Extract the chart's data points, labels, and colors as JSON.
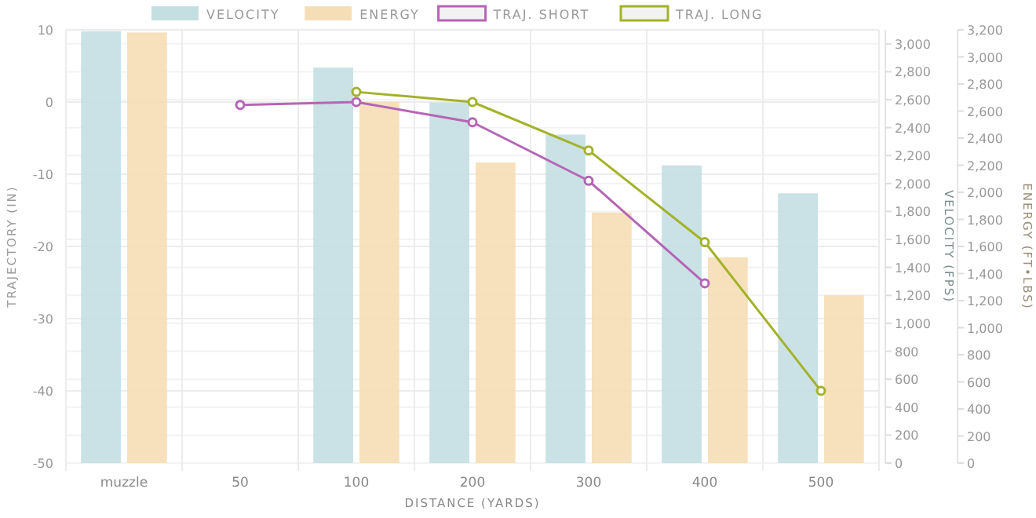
{
  "chart_data": {
    "type": "bar",
    "xlabel": "DISTANCE (YARDS)",
    "ylabel": "TRAJECTORY (IN)",
    "y2label": "VELOCITY (FPS)",
    "y3label": "ENERGY (FT•LBS)",
    "categories": [
      "muzzle",
      "50",
      "100",
      "200",
      "300",
      "400",
      "500"
    ],
    "series": [
      {
        "name": "VELOCITY",
        "axis": "y2",
        "color": "#c4dfe2",
        "values": [
          3090,
          null,
          2830,
          2580,
          2350,
          2130,
          1930
        ]
      },
      {
        "name": "ENERGY",
        "axis": "y3",
        "color": "#f5deb5",
        "values": [
          3180,
          null,
          2670,
          2220,
          1850,
          1520,
          1240
        ]
      },
      {
        "name": "TRAJ. SHORT",
        "type": "line",
        "axis": "y",
        "color": "#b565b5",
        "values": [
          null,
          -0.4,
          0,
          -2.8,
          -10.9,
          -25.1,
          null
        ]
      },
      {
        "name": "TRAJ. LONG",
        "type": "line",
        "axis": "y",
        "color": "#a3b22a",
        "values": [
          null,
          null,
          1.4,
          0,
          -6.7,
          -19.4,
          -40
        ]
      }
    ],
    "ylim": [
      -50,
      10
    ],
    "yticks": [
      -50,
      -40,
      -30,
      -20,
      -10,
      0,
      10
    ],
    "y2lim": [
      0,
      3100
    ],
    "y2ticks": [
      0,
      200,
      400,
      600,
      800,
      {
        "value": 1000,
        "label": "1,000"
      },
      {
        "value": 1200,
        "label": "1,200"
      },
      {
        "value": 1400,
        "label": "1,400"
      },
      {
        "value": 1600,
        "label": "1,600"
      },
      {
        "value": 1800,
        "label": "1,800"
      },
      {
        "value": 2000,
        "label": "2,000"
      },
      {
        "value": 2200,
        "label": "2,200"
      },
      {
        "value": 2400,
        "label": "2,400"
      },
      {
        "value": 2600,
        "label": "2,600"
      },
      {
        "value": 2800,
        "label": "2,800"
      },
      {
        "value": 3000,
        "label": "3,000"
      }
    ],
    "y3lim": [
      0,
      3200
    ],
    "y3ticks": [
      0,
      200,
      400,
      600,
      800,
      {
        "value": 1000,
        "label": "1,000"
      },
      {
        "value": 1200,
        "label": "1,200"
      },
      {
        "value": 1400,
        "label": "1,400"
      },
      {
        "value": 1600,
        "label": "1,600"
      },
      {
        "value": 1800,
        "label": "1,800"
      },
      {
        "value": 2000,
        "label": "2,000"
      },
      {
        "value": 2200,
        "label": "2,200"
      },
      {
        "value": 2400,
        "label": "2,400"
      },
      {
        "value": 2600,
        "label": "2,600"
      },
      {
        "value": 2800,
        "label": "2,800"
      },
      {
        "value": 3000,
        "label": "3,000"
      },
      {
        "value": 3200,
        "label": "3,200"
      }
    ],
    "grid": true,
    "legend": "top",
    "marker": "circle",
    "line_style": "solid"
  }
}
